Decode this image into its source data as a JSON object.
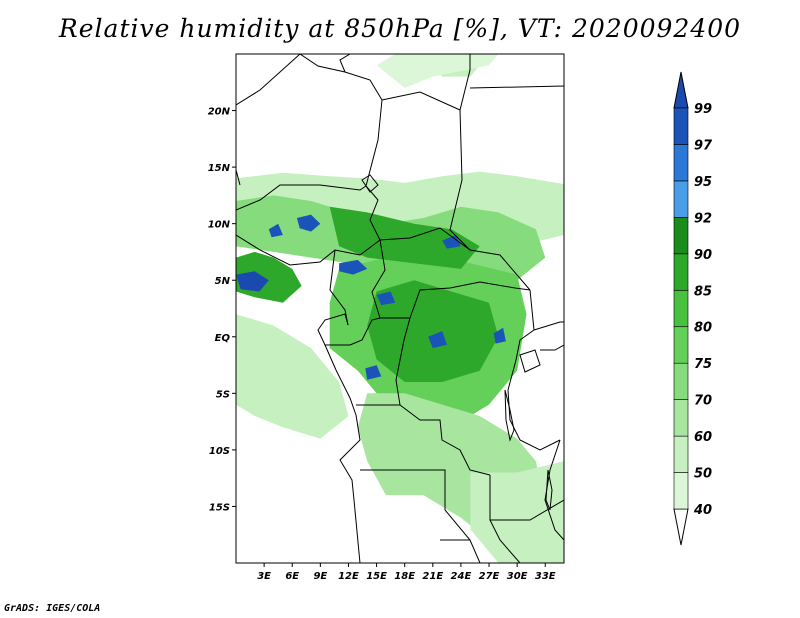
{
  "title": "Relative humidity at 850hPa [%], VT: 2020092400",
  "footer": "GrADS: IGES/COLA",
  "map": {
    "lat_range": [
      -20,
      25
    ],
    "lon_range": [
      0,
      35
    ],
    "y_ticks": [
      "20N",
      "15N",
      "10N",
      "5N",
      "EQ",
      "5S",
      "10S",
      "15S"
    ],
    "y_tick_values": [
      20,
      15,
      10,
      5,
      0,
      -5,
      -10,
      -15
    ],
    "x_ticks": [
      "3E",
      "6E",
      "9E",
      "12E",
      "15E",
      "18E",
      "21E",
      "24E",
      "27E",
      "30E",
      "33E"
    ],
    "x_tick_values": [
      3,
      6,
      9,
      12,
      15,
      18,
      21,
      24,
      27,
      30,
      33
    ]
  },
  "colorbar": {
    "labels": [
      "40",
      "50",
      "60",
      "70",
      "75",
      "80",
      "85",
      "90",
      "92",
      "95",
      "97",
      "99"
    ],
    "colors": [
      "#f0fdf0",
      "#dcf7d8",
      "#c6f0c0",
      "#a8e6a0",
      "#86dc7c",
      "#64d05a",
      "#48c23e",
      "#2ea82a",
      "#1a8c1c",
      "#4a9ee8",
      "#2c78d8",
      "#1a54b8",
      "#1a4ab0"
    ]
  },
  "humidity_regions": [
    {
      "name": "sahel-band",
      "level": 50,
      "pts": [
        [
          0,
          14
        ],
        [
          5,
          14.5
        ],
        [
          10,
          14.2
        ],
        [
          14,
          14
        ],
        [
          18,
          13.6
        ],
        [
          22,
          14.2
        ],
        [
          26,
          14.6
        ],
        [
          30,
          14.2
        ],
        [
          35,
          13.5
        ],
        [
          35,
          9
        ],
        [
          30,
          8
        ],
        [
          24,
          7.5
        ],
        [
          18,
          7
        ],
        [
          12,
          7.5
        ],
        [
          6,
          8
        ],
        [
          0,
          8
        ]
      ]
    },
    {
      "name": "west-wet-zone",
      "level": 70,
      "pts": [
        [
          0,
          12
        ],
        [
          4,
          12.5
        ],
        [
          8,
          12
        ],
        [
          12,
          11
        ],
        [
          16,
          10
        ],
        [
          20,
          10.5
        ],
        [
          24,
          11.5
        ],
        [
          28,
          11
        ],
        [
          32,
          9.5
        ],
        [
          33,
          7
        ],
        [
          30,
          5
        ],
        [
          26,
          5
        ],
        [
          20,
          6
        ],
        [
          16,
          6
        ],
        [
          12,
          6.5
        ],
        [
          8,
          7
        ],
        [
          4,
          7.5
        ],
        [
          0,
          8
        ]
      ]
    },
    {
      "name": "central-basin",
      "level": 75,
      "pts": [
        [
          11,
          6
        ],
        [
          16,
          7
        ],
        [
          20,
          7.5
        ],
        [
          25,
          6.5
        ],
        [
          30,
          5.5
        ],
        [
          31,
          2
        ],
        [
          30,
          -3
        ],
        [
          27,
          -6
        ],
        [
          23,
          -8
        ],
        [
          20,
          -8.5
        ],
        [
          16,
          -6
        ],
        [
          13,
          -3
        ],
        [
          10,
          -1
        ],
        [
          10,
          3
        ]
      ]
    },
    {
      "name": "central-core",
      "level": 85,
      "pts": [
        [
          15,
          4
        ],
        [
          19,
          5
        ],
        [
          23,
          4
        ],
        [
          27,
          3
        ],
        [
          28,
          0
        ],
        [
          26,
          -3
        ],
        [
          22,
          -4
        ],
        [
          18,
          -4
        ],
        [
          15,
          -2
        ],
        [
          14,
          1
        ]
      ]
    },
    {
      "name": "nigeria-cameroon",
      "level": 85,
      "pts": [
        [
          0,
          7
        ],
        [
          2,
          7.5
        ],
        [
          4,
          7
        ],
        [
          6,
          6
        ],
        [
          7,
          4.5
        ],
        [
          5,
          3
        ],
        [
          2,
          3.5
        ],
        [
          0,
          4
        ]
      ]
    },
    {
      "name": "car-belt",
      "level": 85,
      "pts": [
        [
          10,
          11.5
        ],
        [
          14,
          11
        ],
        [
          19,
          10
        ],
        [
          23,
          9.5
        ],
        [
          26,
          8
        ],
        [
          24,
          6
        ],
        [
          19,
          6.5
        ],
        [
          14,
          7
        ],
        [
          11,
          8
        ]
      ]
    },
    {
      "name": "southern-moist",
      "level": 60,
      "pts": [
        [
          14,
          -5
        ],
        [
          18,
          -5
        ],
        [
          22,
          -6
        ],
        [
          26,
          -7
        ],
        [
          30,
          -9
        ],
        [
          32,
          -11
        ],
        [
          33,
          -15
        ],
        [
          31,
          -17
        ],
        [
          27,
          -18
        ],
        [
          24,
          -16
        ],
        [
          20,
          -14
        ],
        [
          16,
          -14
        ],
        [
          14,
          -11
        ],
        [
          13,
          -8
        ]
      ]
    },
    {
      "name": "southeast-strip",
      "level": 50,
      "pts": [
        [
          25,
          -12
        ],
        [
          30,
          -12
        ],
        [
          35,
          -11
        ],
        [
          35,
          -20
        ],
        [
          28,
          -20
        ],
        [
          25,
          -17
        ]
      ]
    },
    {
      "name": "ocean-moist",
      "level": 50,
      "pts": [
        [
          0,
          2
        ],
        [
          4,
          1
        ],
        [
          8,
          -1
        ],
        [
          11,
          -4
        ],
        [
          12,
          -7
        ],
        [
          9,
          -9
        ],
        [
          5,
          -8
        ],
        [
          2,
          -7
        ],
        [
          0,
          -6
        ]
      ]
    },
    {
      "name": "north-patch",
      "level": 50,
      "pts": [
        [
          21,
          24
        ],
        [
          24,
          24.5
        ],
        [
          26,
          24
        ],
        [
          25,
          23
        ],
        [
          22,
          23
        ]
      ]
    },
    {
      "name": "north-patch-2",
      "level": 40,
      "pts": [
        [
          18,
          22
        ],
        [
          21,
          23
        ],
        [
          27,
          24
        ],
        [
          28,
          25
        ],
        [
          17,
          25
        ],
        [
          15,
          24
        ]
      ]
    },
    {
      "name": "wet-spot-1",
      "level": 99,
      "pts": [
        [
          0,
          5.5
        ],
        [
          2,
          5.8
        ],
        [
          3.5,
          5
        ],
        [
          2.5,
          4
        ],
        [
          0.5,
          4.2
        ]
      ]
    },
    {
      "name": "wet-spot-2",
      "level": 97,
      "pts": [
        [
          6.5,
          10.5
        ],
        [
          8,
          10.8
        ],
        [
          9,
          10
        ],
        [
          8,
          9.3
        ],
        [
          6.8,
          9.6
        ]
      ]
    },
    {
      "name": "wet-spot-3",
      "level": 97,
      "pts": [
        [
          11,
          6.5
        ],
        [
          13,
          6.8
        ],
        [
          14,
          6
        ],
        [
          12.5,
          5.5
        ],
        [
          11,
          5.8
        ]
      ]
    },
    {
      "name": "wet-spot-4",
      "level": 97,
      "pts": [
        [
          15,
          3.7
        ],
        [
          16.5,
          4
        ],
        [
          17,
          3
        ],
        [
          15.5,
          2.8
        ]
      ]
    },
    {
      "name": "wet-spot-5",
      "level": 97,
      "pts": [
        [
          22,
          8.5
        ],
        [
          23.5,
          9
        ],
        [
          24,
          8
        ],
        [
          22.5,
          7.8
        ]
      ]
    },
    {
      "name": "wet-spot-6",
      "level": 97,
      "pts": [
        [
          20.5,
          0
        ],
        [
          22,
          0.5
        ],
        [
          22.5,
          -0.7
        ],
        [
          21,
          -1
        ]
      ]
    },
    {
      "name": "wet-spot-7",
      "level": 97,
      "pts": [
        [
          13.8,
          -2.8
        ],
        [
          15,
          -2.5
        ],
        [
          15.5,
          -3.5
        ],
        [
          14,
          -3.8
        ]
      ]
    },
    {
      "name": "wet-spot-8",
      "level": 97,
      "pts": [
        [
          27.5,
          0.3
        ],
        [
          28.5,
          0.8
        ],
        [
          28.8,
          -0.4
        ],
        [
          27.7,
          -0.6
        ]
      ]
    },
    {
      "name": "wet-spot-9",
      "level": 97,
      "pts": [
        [
          3.5,
          9.5
        ],
        [
          4.5,
          10
        ],
        [
          5,
          9
        ],
        [
          3.8,
          8.8
        ]
      ]
    }
  ]
}
